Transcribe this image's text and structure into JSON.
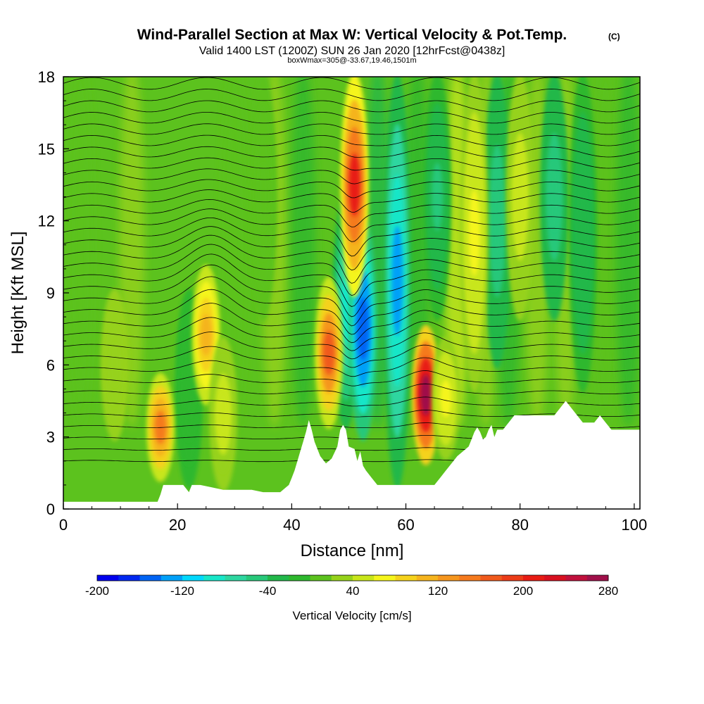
{
  "chart_data": {
    "type": "heatmap",
    "title": "Wind-Parallel Section at Max W: Vertical Velocity & Pot.Temp.",
    "title_mark": "(C)",
    "subtitle": "Valid 1400 LST (1200Z) SUN 26 Jan 2020 [12hrFcst@0438z]",
    "subtitle2": "boxWmax=305@-33.67,19.46,1501m",
    "xlabel": "Distance [nm]",
    "ylabel": "Height [Kft MSL]",
    "xlim": [
      0,
      101
    ],
    "ylim": [
      0,
      18
    ],
    "xticks": [
      0,
      20,
      40,
      60,
      80,
      100
    ],
    "yticks": [
      0,
      3,
      6,
      9,
      12,
      15,
      18
    ],
    "colorbar": {
      "label": "Vertical Velocity [cm/s]",
      "ticks": [
        -200,
        -120,
        -40,
        40,
        120,
        200,
        280
      ],
      "range": [
        -200,
        280
      ],
      "colors": [
        "#0000ee",
        "#0028f0",
        "#0064f4",
        "#00a0f8",
        "#00d8fc",
        "#18e6c8",
        "#2ed6a0",
        "#28c87a",
        "#22b84a",
        "#2eb82e",
        "#5cc21e",
        "#96d21a",
        "#c8e61a",
        "#f5f51c",
        "#f5d21c",
        "#f5b41e",
        "#f5961e",
        "#f57a1e",
        "#f05a1c",
        "#ec3c18",
        "#e81c14",
        "#d81020",
        "#c0103c",
        "#a0104a"
      ]
    },
    "terrain_profile": {
      "x": [
        0,
        16.5,
        17,
        17.5,
        18,
        19,
        21,
        22,
        22.5,
        24,
        26,
        28,
        30,
        32,
        33,
        35,
        37,
        38,
        39,
        39.5,
        40,
        40.5,
        41,
        41.5,
        42,
        42.5,
        43,
        43.5,
        44,
        45,
        46,
        47,
        48,
        48.5,
        49,
        49.5,
        50,
        51,
        51.5,
        52,
        52.5,
        53,
        54,
        55,
        56,
        58,
        60,
        62,
        64,
        65,
        66,
        67,
        68,
        69,
        70,
        71,
        71.5,
        72,
        72.5,
        73,
        73.5,
        74,
        74.5,
        75,
        75.5,
        76,
        77,
        78,
        79,
        80,
        81,
        83,
        85,
        86,
        87,
        88,
        89,
        90,
        91,
        92,
        93,
        94,
        95,
        96,
        97,
        98,
        99,
        100,
        101
      ],
      "height": [
        0.3,
        0.3,
        0.6,
        1.0,
        1.0,
        1.0,
        1.0,
        0.7,
        1.0,
        1.0,
        0.9,
        0.8,
        0.8,
        0.8,
        0.8,
        0.7,
        0.7,
        0.7,
        0.9,
        1.0,
        1.3,
        1.6,
        2.0,
        2.4,
        2.8,
        3.2,
        3.7,
        3.3,
        2.8,
        2.2,
        1.9,
        2.1,
        2.6,
        3.3,
        3.5,
        3.3,
        2.6,
        2.5,
        2.0,
        2.4,
        1.8,
        1.6,
        1.3,
        1.0,
        1.0,
        1.0,
        1.0,
        1.0,
        1.0,
        1.0,
        1.3,
        1.6,
        1.9,
        2.2,
        2.4,
        2.6,
        2.9,
        3.2,
        3.4,
        3.2,
        2.9,
        3.0,
        3.3,
        3.5,
        3.0,
        3.3,
        3.3,
        3.6,
        3.9,
        3.9,
        3.9,
        3.9,
        3.9,
        3.9,
        4.2,
        4.5,
        4.2,
        3.9,
        3.6,
        3.6,
        3.6,
        3.9,
        3.6,
        3.3,
        3.3,
        3.3,
        3.3,
        3.3,
        3.3,
        3.3
      ],
      "color": "#ffffff"
    },
    "updrafts": [
      {
        "x": 17,
        "z0": 1.3,
        "z1": 5.5,
        "w": 150
      },
      {
        "x": 25,
        "z0": 4.5,
        "z1": 10.0,
        "w": 110
      },
      {
        "x": 28,
        "z0": 0.9,
        "z1": 7.0,
        "w": 50
      },
      {
        "x": 46.5,
        "z0": 3.5,
        "z1": 9.5,
        "w": 160
      },
      {
        "x": 51,
        "z0": 9.0,
        "z1": 18.0,
        "w": 200
      },
      {
        "x": 63.5,
        "z0": 2.0,
        "z1": 7.5,
        "w": 270
      },
      {
        "x": 67,
        "z0": 2.2,
        "z1": 7.0,
        "w": 70
      },
      {
        "x": 72,
        "z0": 5.0,
        "z1": 18.0,
        "w": 60
      },
      {
        "x": 80,
        "z0": 8.0,
        "z1": 18.0,
        "w": 55
      },
      {
        "x": 35,
        "z0": 8.0,
        "z1": 18.0,
        "w": 15
      },
      {
        "x": 9,
        "z0": 3.0,
        "z1": 9.0,
        "w": 20
      }
    ],
    "downdrafts": [
      {
        "x": 22,
        "z0": 1.0,
        "z1": 9.0,
        "w": -20
      },
      {
        "x": 49.5,
        "z0": 3.5,
        "z1": 13.0,
        "w": -90
      },
      {
        "x": 52.5,
        "z0": 3.0,
        "z1": 12.0,
        "w": -160
      },
      {
        "x": 58.5,
        "z0": 1.0,
        "z1": 18.0,
        "w": -130
      },
      {
        "x": 65.5,
        "z0": 8.0,
        "z1": 18.0,
        "w": -45
      },
      {
        "x": 76,
        "z0": 6.0,
        "z1": 18.0,
        "w": -60
      },
      {
        "x": 86,
        "z0": 8.0,
        "z1": 18.0,
        "w": -55
      },
      {
        "x": 91,
        "z0": 5.0,
        "z1": 18.0,
        "w": -40
      }
    ],
    "isentrope_count": 34
  }
}
